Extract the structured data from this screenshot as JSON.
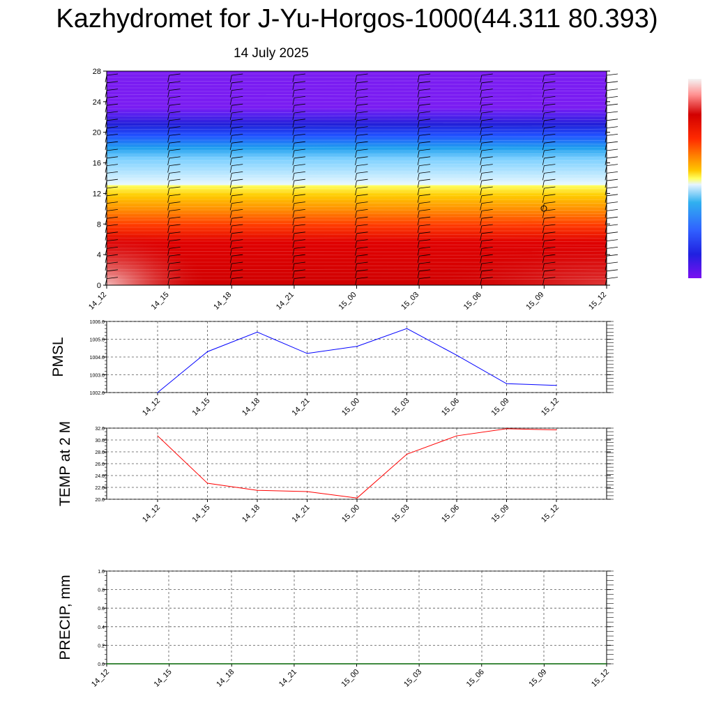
{
  "title": "Kazhydromet for J-Yu-Horgos-1000(44.311 80.393)",
  "date": "14 July 2025",
  "time_labels": [
    "14_12",
    "14_15",
    "14_18",
    "14_21",
    "15_00",
    "15_03",
    "15_06",
    "15_09",
    "15_12"
  ],
  "chart_data": [
    {
      "type": "heatmap",
      "name": "vertical-profile",
      "xlabel": "",
      "ylabel": "",
      "x_ticks": [
        "14_12",
        "14_15",
        "14_18",
        "14_21",
        "15_00",
        "15_03",
        "15_06",
        "15_09",
        "15_12"
      ],
      "y_ticks": [
        0,
        4,
        8,
        12,
        16,
        20,
        24,
        28
      ],
      "ylim": [
        0,
        28
      ],
      "colorbar_colors": [
        "#f4f4f4",
        "#ff9090",
        "#d20000",
        "#ff2a00",
        "#ff7a00",
        "#ffc800",
        "#ffff60",
        "#c8e8ff",
        "#30b0f0",
        "#3060ff",
        "#2020e0",
        "#7a10f0"
      ],
      "wind_barbs": true
    },
    {
      "type": "line",
      "name": "PMSL",
      "ylabel": "PMSL",
      "x": [
        "14_12",
        "14_15",
        "14_18",
        "14_21",
        "15_00",
        "15_03",
        "15_06",
        "15_09",
        "15_12"
      ],
      "values": [
        1002.0,
        1004.3,
        1005.4,
        1004.2,
        1004.6,
        1005.6,
        1004.1,
        1002.5,
        1002.4
      ],
      "ylim": [
        1002.0,
        1006.0
      ],
      "y_ticks": [
        "1002.0",
        "1003.0",
        "1004.0",
        "1005.0",
        "1006.0"
      ],
      "color": "#0000ff",
      "grid": true
    },
    {
      "type": "line",
      "name": "TEMP at 2 M",
      "ylabel": "TEMP at 2 M",
      "x": [
        "14_12",
        "14_15",
        "14_18",
        "14_21",
        "15_00",
        "15_03",
        "15_06",
        "15_09",
        "15_12"
      ],
      "values": [
        30.7,
        22.7,
        21.5,
        21.3,
        20.2,
        27.6,
        30.7,
        31.9,
        31.7
      ],
      "ylim": [
        20.0,
        32.0
      ],
      "y_ticks": [
        "20.0",
        "22.0",
        "24.0",
        "26.0",
        "28.0",
        "30.0",
        "32.0"
      ],
      "color": "#ff0000",
      "grid": true
    },
    {
      "type": "line",
      "name": "PRECIP, mm",
      "ylabel": "PRECIP, mm",
      "x": [
        "14_12",
        "14_15",
        "14_18",
        "14_21",
        "15_00",
        "15_03",
        "15_06",
        "15_09",
        "15_12"
      ],
      "values": [
        0,
        0,
        0,
        0,
        0,
        0,
        0,
        0,
        0
      ],
      "ylim": [
        0.0,
        1.0
      ],
      "y_ticks": [
        "0.0",
        "0.2",
        "0.4",
        "0.6",
        "0.8",
        "1.0"
      ],
      "color": "#006400",
      "grid": true
    }
  ]
}
